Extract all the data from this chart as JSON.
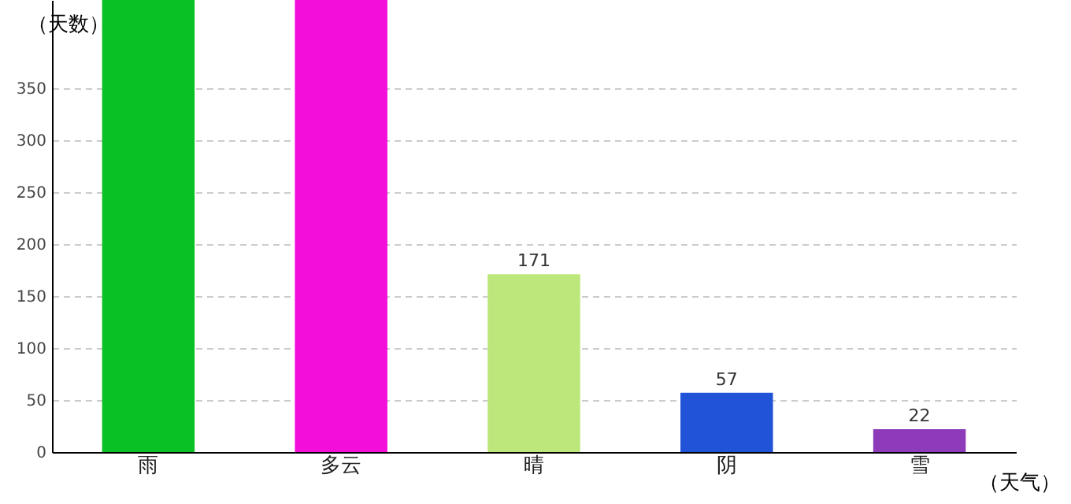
{
  "chart_data": {
    "type": "bar",
    "xlabel": "（天气）",
    "ylabel": "（天数）",
    "categories": [
      "雨",
      "多云",
      "晴",
      "阴",
      "雪"
    ],
    "values": [
      435,
      435,
      171,
      57,
      22
    ],
    "colors": [
      "#09c124",
      "#f30fd9",
      "#bde67b",
      "#2153d9",
      "#8e3bba"
    ],
    "value_labels": [
      null,
      null,
      "171",
      "57",
      "22"
    ],
    "ylim": [
      0,
      435
    ],
    "yticks": [
      0,
      50,
      100,
      150,
      200,
      250,
      300,
      350
    ],
    "grid": "y"
  }
}
